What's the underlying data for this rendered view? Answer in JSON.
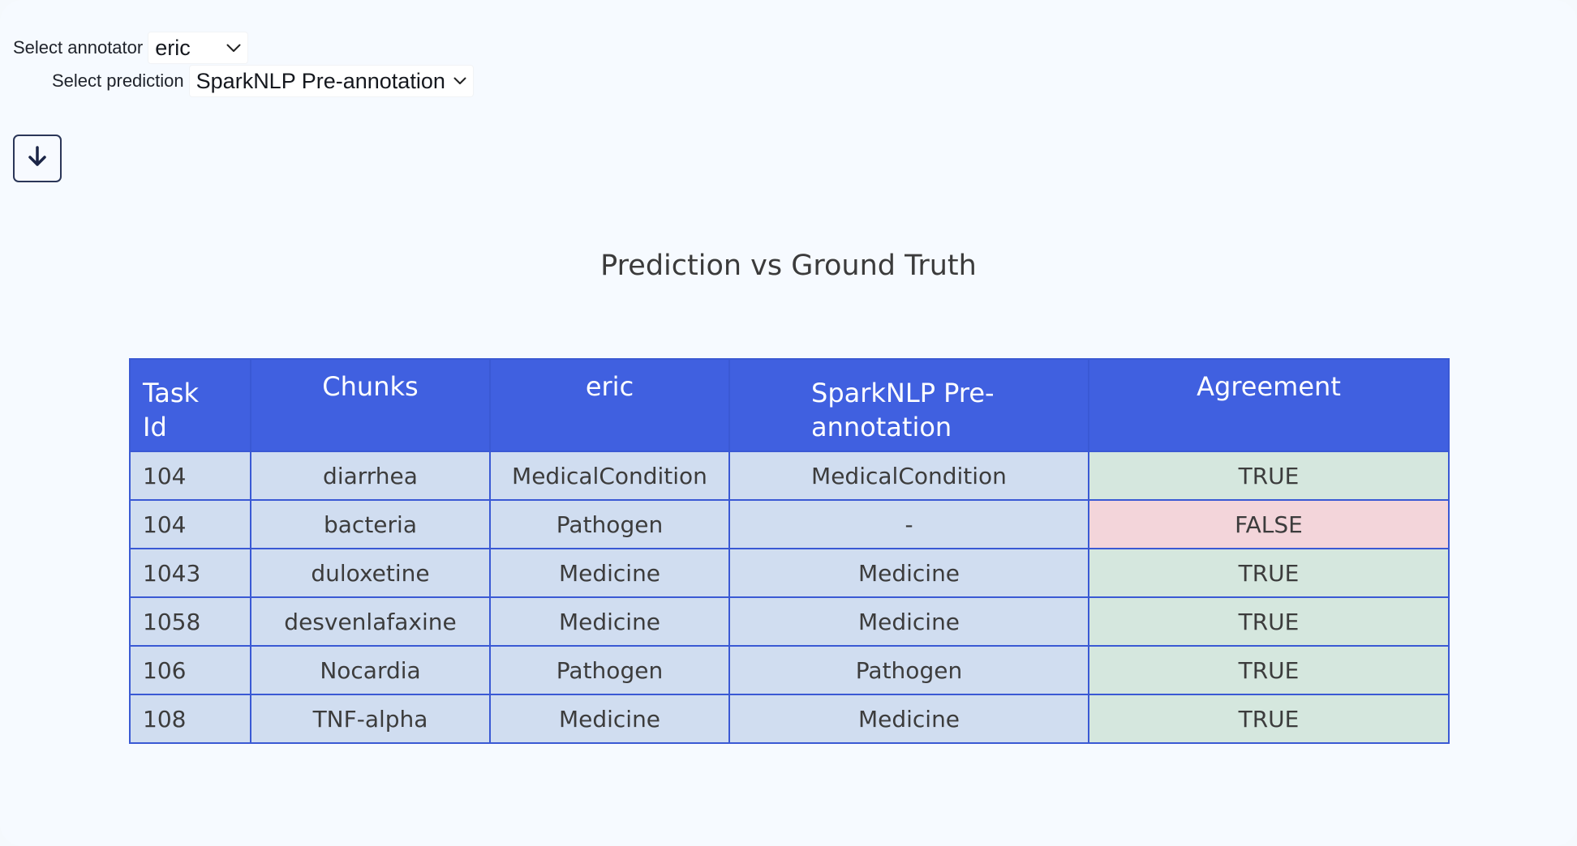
{
  "annotator_select": {
    "label": "Select annotator",
    "value": "eric"
  },
  "prediction_select": {
    "label": "Select prediction",
    "value": "SparkNLP Pre-annotation"
  },
  "download_button": {
    "icon": "arrow-down-icon"
  },
  "chart_data": {
    "type": "table",
    "title": "Prediction vs Ground Truth",
    "columns": [
      "Task Id",
      "Chunks",
      "eric",
      "SparkNLP Pre-annotation",
      "Agreement"
    ],
    "rows": [
      [
        "104",
        "diarrhea",
        "MedicalCondition",
        "MedicalCondition",
        "TRUE"
      ],
      [
        "104",
        "bacteria",
        "Pathogen",
        "-",
        "FALSE"
      ],
      [
        "1043",
        "duloxetine",
        "Medicine",
        "Medicine",
        "TRUE"
      ],
      [
        "1058",
        "desvenlafaxine",
        "Medicine",
        "Medicine",
        "TRUE"
      ],
      [
        "106",
        "Nocardia",
        "Pathogen",
        "Pathogen",
        "TRUE"
      ],
      [
        "108",
        "TNF-alpha",
        "Medicine",
        "Medicine",
        "TRUE"
      ]
    ],
    "colors": {
      "header": "#4060e0",
      "cell": "#d0ddf0",
      "agreement_true": "#d5e7de",
      "agreement_false": "#f3d5da",
      "grid": "#3a59d4"
    }
  }
}
